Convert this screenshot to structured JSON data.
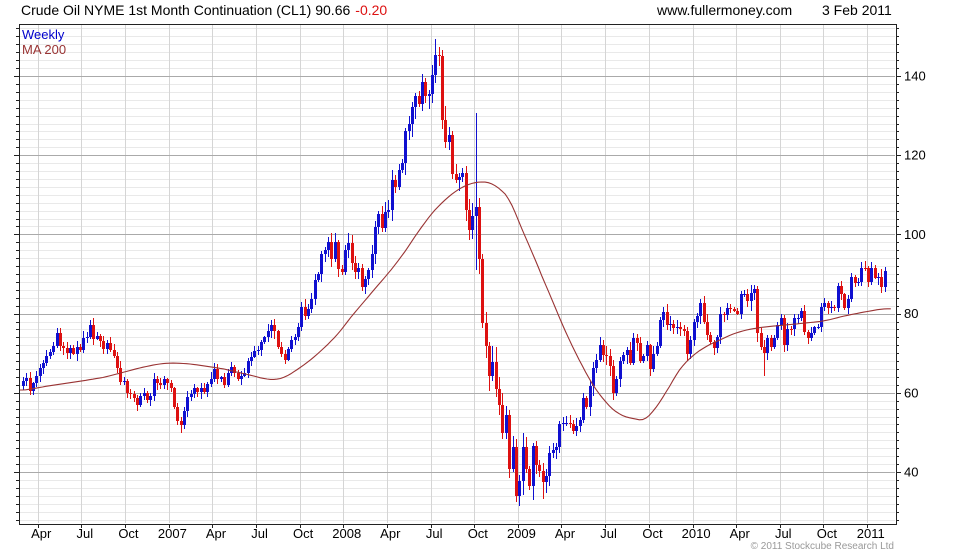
{
  "header": {
    "title": "Crude Oil NYME 1st Month Continuation (CL1)",
    "price": "90.66",
    "change": "-0.20",
    "site": "www.fullermoney.com",
    "date": "3 Feb 2011"
  },
  "legend": {
    "series_label": "Weekly",
    "ma_label": "MA 200"
  },
  "footer": {
    "copyright": "© 2011 Stockcube Research Ltd"
  },
  "colors": {
    "up": "#1010d0",
    "down": "#dd1111",
    "ma": "#993333",
    "weekly_label": "#0000cc",
    "ma_label": "#993333",
    "grid_major": "#aaaaaa",
    "grid_minor": "#e9e9e9",
    "grid_vert": "#d5d5d5",
    "border": "#222222",
    "axis_text": "#000000",
    "copyright": "#999999",
    "change": "#dd1111"
  },
  "chart_data": {
    "type": "candlestick",
    "title": "Crude Oil NYME 1st Month Continuation (CL1)",
    "period": "Weekly",
    "overlay": "MA 200",
    "y_ticks": [
      40,
      60,
      80,
      100,
      120,
      140
    ],
    "y_minor_step": 2,
    "value_range": [
      26.87,
      153.13
    ],
    "x_ticks": [
      {
        "label": "Apr",
        "week": 4.4
      },
      {
        "label": "Jul",
        "week": 17.4
      },
      {
        "label": "Oct",
        "week": 30.4
      },
      {
        "label": "2007",
        "week": 43.5
      },
      {
        "label": "Apr",
        "week": 56.5
      },
      {
        "label": "Jul",
        "week": 69.5
      },
      {
        "label": "Oct",
        "week": 82.5
      },
      {
        "label": "2008",
        "week": 95.5
      },
      {
        "label": "Apr",
        "week": 108.5
      },
      {
        "label": "Jul",
        "week": 121.6
      },
      {
        "label": "Oct",
        "week": 134.6
      },
      {
        "label": "2009",
        "week": 147.6
      },
      {
        "label": "Apr",
        "week": 160.6
      },
      {
        "label": "Jul",
        "week": 173.6
      },
      {
        "label": "Oct",
        "week": 186.7
      },
      {
        "label": "2010",
        "week": 199.7
      },
      {
        "label": "Apr",
        "week": 212.7
      },
      {
        "label": "Jul",
        "week": 225.7
      },
      {
        "label": "Oct",
        "week": 238.7
      },
      {
        "label": "2011",
        "week": 251.8
      }
    ],
    "first_week_open": 61.8,
    "last_close": 90.66,
    "weekly_closes": [
      62.9,
      63.7,
      60.5,
      62.4,
      64.3,
      66.2,
      67.4,
      69.3,
      70.4,
      71.9,
      75.1,
      71.9,
      71.3,
      70.0,
      71.3,
      69.9,
      71.6,
      70.9,
      73.9,
      74.1,
      77.0,
      73.7,
      74.4,
      73.2,
      71.1,
      72.5,
      70.9,
      69.2,
      66.3,
      62.8,
      63.1,
      60.0,
      59.8,
      58.6,
      56.8,
      59.3,
      59.9,
      58.2,
      59.2,
      63.4,
      62.4,
      62.0,
      63.4,
      62.4,
      61.1,
      56.3,
      52.9,
      51.9,
      55.4,
      59.0,
      59.7,
      61.1,
      60.1,
      61.2,
      60.1,
      62.3,
      63.6,
      65.9,
      63.4,
      63.9,
      62.0,
      64.9,
      66.5,
      65.1,
      63.4,
      64.2,
      65.1,
      68.0,
      69.1,
      70.5,
      70.7,
      72.8,
      74.0,
      75.6,
      77.0,
      75.5,
      71.6,
      69.8,
      68.4,
      71.1,
      73.4,
      74.0,
      76.7,
      81.7,
      79.3,
      81.2,
      83.7,
      88.6,
      90.0,
      95.1,
      96.1,
      98.2,
      93.8,
      98.0,
      91.3,
      90.5,
      96.0,
      97.9,
      92.7,
      90.6,
      91.6,
      86.6,
      88.7,
      91.1,
      95.0,
      101.8,
      105.2,
      101.5,
      105.6,
      106.2,
      113.7,
      112.0,
      116.3,
      118.1,
      126.0,
      127.8,
      132.2,
      134.9,
      133.0,
      138.5,
      134.9,
      135.4,
      140.2,
      145.3,
      145.1,
      128.9,
      123.3,
      125.1,
      115.2,
      113.8,
      114.6,
      115.5,
      106.2,
      101.2,
      104.6,
      106.9,
      93.9,
      77.7,
      71.9,
      64.2,
      67.8,
      61.0,
      57.0,
      49.9,
      54.4,
      40.8,
      46.3,
      33.9,
      37.7,
      46.3,
      40.8,
      36.5,
      46.5,
      41.7,
      40.2,
      37.5,
      38.9,
      44.8,
      45.5,
      46.3,
      52.1,
      52.4,
      52.5,
      52.2,
      50.3,
      51.6,
      53.2,
      58.6,
      56.5,
      61.7,
      66.3,
      68.4,
      72.0,
      69.6,
      69.2,
      66.7,
      59.9,
      63.6,
      68.1,
      69.5,
      70.9,
      67.5,
      73.9,
      72.7,
      68.0,
      69.3,
      72.0,
      66.0,
      69.9,
      71.8,
      78.5,
      80.5,
      77.0,
      77.4,
      76.4,
      76.7,
      76.0,
      75.5,
      69.9,
      73.4,
      78.0,
      79.4,
      82.8,
      78.0,
      74.5,
      72.9,
      71.2,
      74.1,
      79.8,
      79.7,
      81.5,
      81.2,
      80.7,
      80.0,
      84.9,
      84.9,
      83.2,
      85.1,
      86.2,
      75.1,
      71.6,
      70.0,
      73.9,
      71.5,
      73.8,
      77.2,
      78.9,
      72.1,
      76.1,
      76.0,
      78.9,
      78.9,
      80.7,
      75.4,
      73.8,
      75.2,
      76.5,
      76.5,
      81.6,
      82.7,
      81.3,
      81.7,
      81.4,
      86.9,
      84.9,
      81.5,
      83.8,
      89.2,
      87.8,
      88.0,
      91.5,
      91.4,
      88.0,
      91.5,
      89.1,
      89.3,
      86.7,
      90.66
    ],
    "range_pct_anchors": [
      [
        0,
        5.0
      ],
      [
        30,
        5.0
      ],
      [
        44,
        5.5
      ],
      [
        57,
        4.5
      ],
      [
        70,
        4.5
      ],
      [
        83,
        4.5
      ],
      [
        96,
        5.0
      ],
      [
        110,
        4.5
      ],
      [
        124,
        5.0
      ],
      [
        132,
        6.0
      ],
      [
        136,
        10.0
      ],
      [
        143,
        13.0
      ],
      [
        150,
        15.0
      ],
      [
        156,
        13.0
      ],
      [
        160,
        9.0
      ],
      [
        167,
        8.0
      ],
      [
        176,
        7.0
      ],
      [
        189,
        5.5
      ],
      [
        202,
        5.0
      ],
      [
        215,
        4.5
      ],
      [
        219,
        7.0
      ],
      [
        228,
        4.5
      ],
      [
        239,
        3.5
      ],
      [
        250,
        3.5
      ],
      [
        257,
        4.5
      ]
    ],
    "wick_overrides": {
      "20": {
        "high": 78.4
      },
      "47": {
        "low": 49.9
      },
      "91": {
        "high": 99.3
      },
      "124": {
        "high": 147.3
      },
      "135": {
        "high": 130.7,
        "low": 91.0,
        "open": 104.6,
        "close": 106.9
      },
      "143": {
        "low": 48.4
      },
      "147": {
        "low": 32.4
      },
      "149": {
        "high": 49.8
      },
      "155": {
        "low": 33.2
      },
      "176": {
        "low": 58.3
      },
      "221": {
        "low": 64.2
      },
      "256": {
        "low": 85.1
      }
    },
    "ma_anchors": [
      [
        0,
        60.7
      ],
      [
        8,
        61.8
      ],
      [
        16,
        62.8
      ],
      [
        24,
        63.9
      ],
      [
        30,
        65.2
      ],
      [
        36,
        66.5
      ],
      [
        42,
        67.4
      ],
      [
        48,
        67.4
      ],
      [
        54,
        66.8
      ],
      [
        60,
        66.0
      ],
      [
        64,
        65.2
      ],
      [
        68,
        64.4
      ],
      [
        72,
        63.6
      ],
      [
        75,
        63.4
      ],
      [
        78,
        64.0
      ],
      [
        82,
        66.0
      ],
      [
        86,
        68.5
      ],
      [
        90,
        71.5
      ],
      [
        94,
        75.0
      ],
      [
        98,
        79.3
      ],
      [
        102,
        83.3
      ],
      [
        106,
        87.3
      ],
      [
        110,
        91.3
      ],
      [
        114,
        95.8
      ],
      [
        118,
        100.8
      ],
      [
        122,
        105.3
      ],
      [
        126,
        108.8
      ],
      [
        130,
        111.4
      ],
      [
        134,
        112.9
      ],
      [
        138,
        113.2
      ],
      [
        141,
        112.2
      ],
      [
        144,
        110.0
      ],
      [
        146,
        107.0
      ],
      [
        148,
        103.0
      ],
      [
        150,
        99.0
      ],
      [
        152,
        95.0
      ],
      [
        155,
        89.0
      ],
      [
        158,
        83.0
      ],
      [
        161,
        77.0
      ],
      [
        164,
        71.5
      ],
      [
        167,
        66.5
      ],
      [
        170,
        62.0
      ],
      [
        173,
        58.5
      ],
      [
        176,
        55.8
      ],
      [
        179,
        54.2
      ],
      [
        182,
        53.5
      ],
      [
        185,
        53.3
      ],
      [
        188,
        55.5
      ],
      [
        192,
        60.5
      ],
      [
        196,
        66.0
      ],
      [
        200,
        69.5
      ],
      [
        204,
        71.8
      ],
      [
        208,
        73.4
      ],
      [
        212,
        74.9
      ],
      [
        216,
        75.9
      ],
      [
        221,
        76.6
      ],
      [
        227,
        77.1
      ],
      [
        233,
        77.6
      ],
      [
        239,
        78.2
      ],
      [
        245,
        79.4
      ],
      [
        251,
        80.4
      ],
      [
        257,
        81.2
      ]
    ]
  }
}
